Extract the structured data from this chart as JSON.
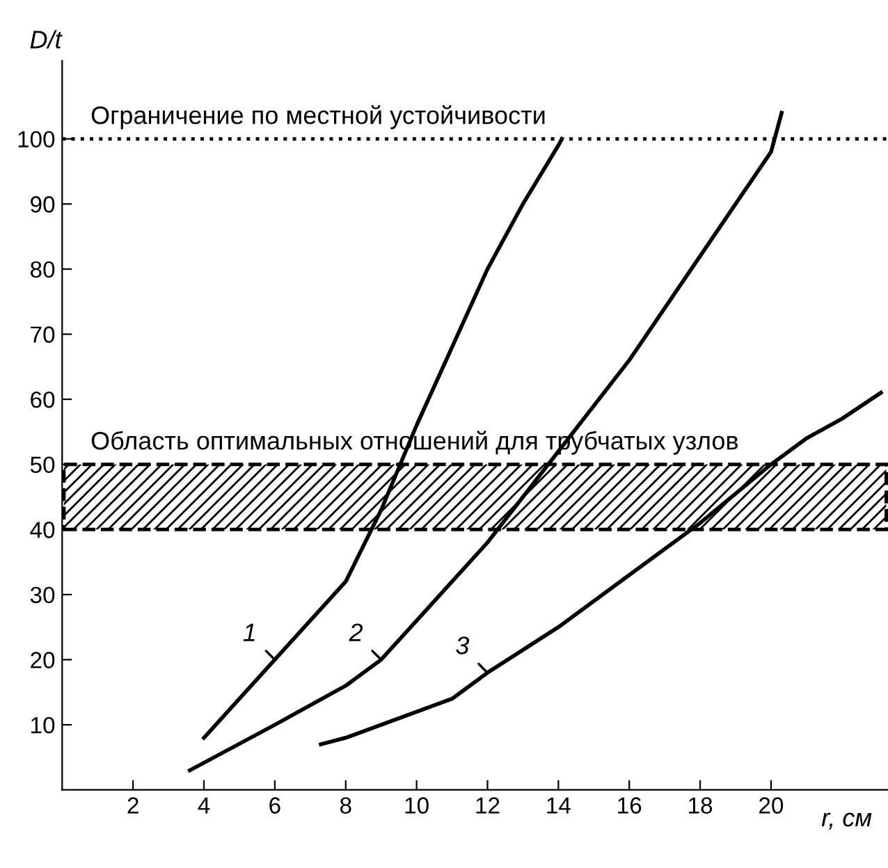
{
  "chart_data": {
    "type": "line",
    "xlabel": "r, см",
    "ylabel": "D/t",
    "xlim": [
      0,
      23.3
    ],
    "ylim": [
      0,
      112
    ],
    "xticks": [
      2,
      4,
      6,
      8,
      10,
      12,
      14,
      16,
      18,
      20
    ],
    "yticks": [
      10,
      20,
      30,
      40,
      50,
      60,
      70,
      80,
      90,
      100
    ],
    "grid": false,
    "legend": false,
    "marker": "none",
    "line_style": "solid",
    "series": [
      {
        "name": "1",
        "color": "#000000",
        "x": [
          4,
          6,
          8,
          9,
          10,
          11,
          12,
          13,
          14,
          14.1
        ],
        "values": [
          8,
          20,
          32,
          43,
          56,
          68,
          80,
          90,
          99,
          100
        ]
      },
      {
        "name": "2",
        "color": "#000000",
        "x": [
          3.6,
          6,
          8,
          9,
          10,
          11,
          12,
          13,
          14,
          16,
          18,
          20,
          20.3
        ],
        "values": [
          3,
          10,
          16,
          20,
          26,
          32,
          38,
          45,
          52,
          66,
          82,
          98,
          104
        ]
      },
      {
        "name": "3",
        "color": "#000000",
        "x": [
          7.3,
          8,
          9,
          10,
          11,
          12,
          14,
          16,
          18,
          20,
          21,
          22,
          23.1
        ],
        "values": [
          7,
          8,
          10,
          12,
          14,
          18,
          25,
          33,
          41,
          50,
          54,
          57,
          61
        ]
      }
    ],
    "ref_lines": [
      {
        "axis": "y",
        "value": 100,
        "label": "Ограничение по местной устойчивости",
        "color": "#000000",
        "line_style": "dotted"
      }
    ],
    "bands": [
      {
        "axis": "y",
        "from": 40,
        "to": 50,
        "label": "Область оптимальных отношений для трубчатых узлов",
        "color": "#000000"
      }
    ]
  }
}
